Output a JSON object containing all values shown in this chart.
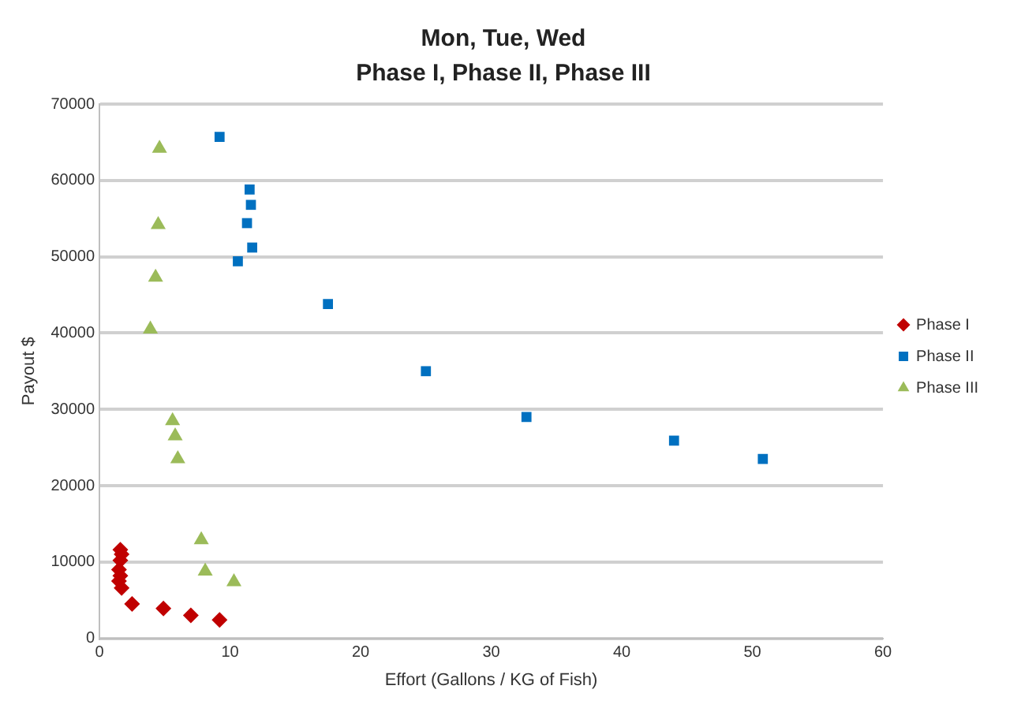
{
  "chart_data": {
    "type": "scatter",
    "title": "Mon, Tue, Wed",
    "subtitle": "Phase I, Phase II, Phase III",
    "xlabel": "Effort (Gallons / KG of Fish)",
    "ylabel": "Payout $",
    "xlim": [
      0,
      60
    ],
    "xticks": [
      0,
      10,
      20,
      30,
      40,
      50,
      60
    ],
    "ylim": [
      0,
      70000
    ],
    "yticks": [
      0,
      10000,
      20000,
      30000,
      40000,
      50000,
      60000,
      70000
    ],
    "grid": "y",
    "legend": "right",
    "series": [
      {
        "name": "Phase I",
        "color": "#c00000",
        "marker": "diamond",
        "x": [
          1.6,
          1.7,
          1.6,
          1.5,
          1.6,
          1.5,
          1.7,
          2.5,
          4.9,
          7,
          9.2
        ],
        "values": [
          11600,
          11000,
          10200,
          9000,
          8200,
          7500,
          6600,
          4500,
          3900,
          3000,
          2400
        ]
      },
      {
        "name": "Phase II",
        "color": "#0070c0",
        "marker": "square",
        "x": [
          9.2,
          11.5,
          11.6,
          11.3,
          11.7,
          10.6,
          17.5,
          25,
          32.7,
          44,
          50.8
        ],
        "values": [
          65700,
          58800,
          56800,
          54400,
          51200,
          49400,
          43800,
          35000,
          29000,
          25900,
          23500
        ]
      },
      {
        "name": "Phase III",
        "color": "#9bbb59",
        "marker": "triangle",
        "x": [
          4.6,
          4.5,
          4.3,
          3.9,
          5.6,
          5.8,
          6,
          7.8,
          8.1,
          10.3
        ],
        "values": [
          64200,
          54200,
          47300,
          40500,
          28500,
          26500,
          23500,
          12900,
          8800,
          7400
        ]
      }
    ]
  }
}
